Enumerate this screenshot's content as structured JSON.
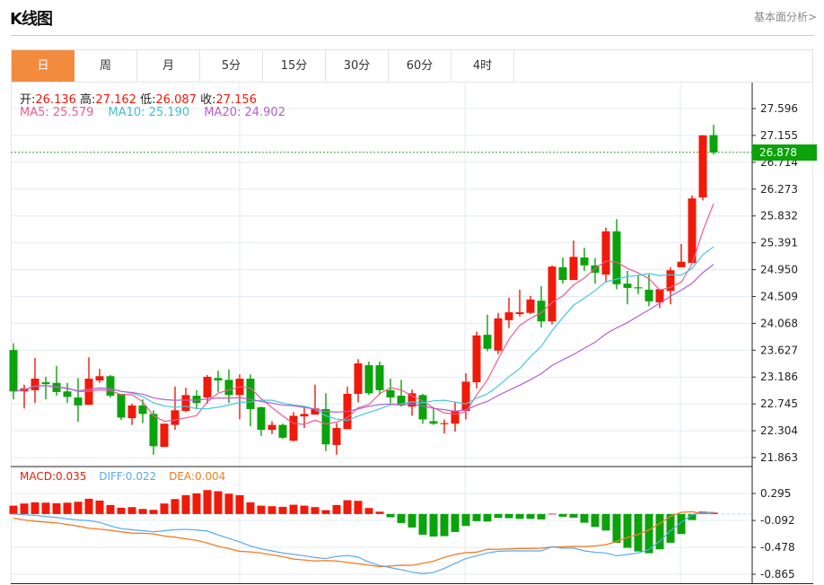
{
  "header": {
    "title": "K线图",
    "more_link": "基本面分析>"
  },
  "tabs": [
    {
      "label": "日",
      "active": true
    },
    {
      "label": "周"
    },
    {
      "label": "月"
    },
    {
      "label": "5分"
    },
    {
      "label": "15分"
    },
    {
      "label": "30分"
    },
    {
      "label": "60分"
    },
    {
      "label": "4时"
    }
  ],
  "ohlc_legend": {
    "open_label": "开:",
    "open": "26.136",
    "high_label": "高:",
    "high": "27.162",
    "low_label": "低:",
    "low": "26.087",
    "close_label": "收:",
    "close": "27.156"
  },
  "ma_legend": {
    "ma5": "MA5: 25.579",
    "ma10": "MA10: 25.190",
    "ma20": "MA20: 24.902"
  },
  "macd_legend": {
    "macd": "MACD:0.035",
    "diff": "DIFF:0.022",
    "dea": "DEA:0.004"
  },
  "current_price": "26.878",
  "colors": {
    "up": "#f01a0a",
    "down": "#0aa30a",
    "ma5": "#ef5b8f",
    "ma10": "#45c8dc",
    "ma20": "#b45fd0",
    "diff": "#55aaf0",
    "dea": "#f57b20",
    "accent": "#f38b3f"
  },
  "chart_data": [
    {
      "type": "candlestick",
      "ylim": [
        21.863,
        27.596
      ],
      "y_ticks": [
        "27.596",
        "27.155",
        "26.714",
        "26.273",
        "25.832",
        "25.391",
        "24.950",
        "24.509",
        "24.068",
        "23.627",
        "23.186",
        "22.745",
        "22.304",
        "21.863"
      ],
      "grid": true,
      "ohlc": [
        [
          23.63,
          23.74,
          22.82,
          22.95
        ],
        [
          22.95,
          23.06,
          22.67,
          23.0
        ],
        [
          22.97,
          23.5,
          22.76,
          23.16
        ],
        [
          23.1,
          23.19,
          22.82,
          23.07
        ],
        [
          23.09,
          23.37,
          22.88,
          22.94
        ],
        [
          22.95,
          23.09,
          22.76,
          22.86
        ],
        [
          22.85,
          23.17,
          22.45,
          22.72
        ],
        [
          22.73,
          23.51,
          22.73,
          23.16
        ],
        [
          23.13,
          23.32,
          23.09,
          23.2
        ],
        [
          23.2,
          23.22,
          22.85,
          22.88
        ],
        [
          22.91,
          22.91,
          22.48,
          22.52
        ],
        [
          22.51,
          22.75,
          22.4,
          22.72
        ],
        [
          22.72,
          22.82,
          22.43,
          22.58
        ],
        [
          22.58,
          22.64,
          21.91,
          22.05
        ],
        [
          22.04,
          22.42,
          22.04,
          22.42
        ],
        [
          22.4,
          23.03,
          22.32,
          22.64
        ],
        [
          22.63,
          23.01,
          22.61,
          22.89
        ],
        [
          22.88,
          22.97,
          22.67,
          22.76
        ],
        [
          22.85,
          23.22,
          22.75,
          23.19
        ],
        [
          23.17,
          23.29,
          22.94,
          23.13
        ],
        [
          23.14,
          23.31,
          22.76,
          22.89
        ],
        [
          22.89,
          23.23,
          22.49,
          23.16
        ],
        [
          23.16,
          23.23,
          22.38,
          22.66
        ],
        [
          22.69,
          22.7,
          22.22,
          22.32
        ],
        [
          22.32,
          22.46,
          22.25,
          22.4
        ],
        [
          22.4,
          22.42,
          22.17,
          22.19
        ],
        [
          22.14,
          22.61,
          22.13,
          22.55
        ],
        [
          22.54,
          22.7,
          22.35,
          22.58
        ],
        [
          22.57,
          23.06,
          22.57,
          22.67
        ],
        [
          22.66,
          22.92,
          21.97,
          22.08
        ],
        [
          22.07,
          22.43,
          21.91,
          22.35
        ],
        [
          22.33,
          23.03,
          22.33,
          22.91
        ],
        [
          22.91,
          23.48,
          22.77,
          23.41
        ],
        [
          23.38,
          23.44,
          22.89,
          22.92
        ],
        [
          23.38,
          23.44,
          22.89,
          22.97
        ],
        [
          22.97,
          23.16,
          22.76,
          22.85
        ],
        [
          22.88,
          23.14,
          22.7,
          22.72
        ],
        [
          22.7,
          22.98,
          22.55,
          22.92
        ],
        [
          22.89,
          22.91,
          22.42,
          22.49
        ],
        [
          22.46,
          22.67,
          22.4,
          22.42
        ],
        [
          22.42,
          22.49,
          22.26,
          22.43
        ],
        [
          22.42,
          22.77,
          22.29,
          22.63
        ],
        [
          22.63,
          23.25,
          22.49,
          23.11
        ],
        [
          23.1,
          23.93,
          23.0,
          23.87
        ],
        [
          23.88,
          24.21,
          23.61,
          23.65
        ],
        [
          23.62,
          24.24,
          23.56,
          24.15
        ],
        [
          24.12,
          24.49,
          23.99,
          24.25
        ],
        [
          24.22,
          24.62,
          24.18,
          24.25
        ],
        [
          24.24,
          24.52,
          24.22,
          24.46
        ],
        [
          24.44,
          24.68,
          24.0,
          24.1
        ],
        [
          24.1,
          25.02,
          24.05,
          25.0
        ],
        [
          24.99,
          25.15,
          24.72,
          24.78
        ],
        [
          24.78,
          25.43,
          24.78,
          25.16
        ],
        [
          25.15,
          25.31,
          24.93,
          25.02
        ],
        [
          25.02,
          25.14,
          24.72,
          24.9
        ],
        [
          24.87,
          25.64,
          24.74,
          25.58
        ],
        [
          25.58,
          25.78,
          24.63,
          24.71
        ],
        [
          24.72,
          24.93,
          24.38,
          24.65
        ],
        [
          24.66,
          24.87,
          24.55,
          24.65
        ],
        [
          24.62,
          24.87,
          24.35,
          24.43
        ],
        [
          24.41,
          24.63,
          24.32,
          24.63
        ],
        [
          24.6,
          24.99,
          24.38,
          24.94
        ],
        [
          24.99,
          25.37,
          24.99,
          25.08
        ],
        [
          25.06,
          26.17,
          25.06,
          26.12
        ],
        [
          26.136,
          27.162,
          26.087,
          27.156
        ],
        [
          27.16,
          27.33,
          26.84,
          26.878
        ]
      ],
      "moving_averages": [
        5,
        10,
        20
      ]
    },
    {
      "type": "bar",
      "ylim": [
        -0.865,
        0.295
      ],
      "y_ticks": [
        "0.295",
        "-0.092",
        "-0.478",
        "-0.865"
      ],
      "macd": [
        0.12,
        0.151,
        0.168,
        0.163,
        0.155,
        0.163,
        0.176,
        0.219,
        0.194,
        0.129,
        0.09,
        0.099,
        0.073,
        0.06,
        0.151,
        0.215,
        0.271,
        0.297,
        0.344,
        0.327,
        0.292,
        0.271,
        0.168,
        0.12,
        0.112,
        0.103,
        0.133,
        0.12,
        0.099,
        0.056,
        0.129,
        0.198,
        0.189,
        0.086,
        0.034,
        -0.047,
        -0.129,
        -0.194,
        -0.297,
        -0.323,
        -0.318,
        -0.258,
        -0.172,
        -0.103,
        -0.108,
        -0.056,
        -0.06,
        -0.069,
        -0.069,
        -0.077,
        0.005,
        -0.039,
        -0.052,
        -0.125,
        -0.185,
        -0.237,
        -0.413,
        -0.486,
        -0.538,
        -0.563,
        -0.507,
        -0.413,
        -0.288,
        -0.086,
        0.035,
        0.02
      ],
      "diff": [
        0.0,
        -0.01,
        -0.02,
        -0.035,
        -0.05,
        -0.07,
        -0.085,
        -0.095,
        -0.12,
        -0.17,
        -0.21,
        -0.225,
        -0.24,
        -0.255,
        -0.24,
        -0.225,
        -0.22,
        -0.23,
        -0.245,
        -0.3,
        -0.35,
        -0.4,
        -0.46,
        -0.5,
        -0.53,
        -0.56,
        -0.58,
        -0.6,
        -0.625,
        -0.64,
        -0.61,
        -0.595,
        -0.62,
        -0.69,
        -0.74,
        -0.77,
        -0.8,
        -0.835,
        -0.855,
        -0.84,
        -0.78,
        -0.71,
        -0.64,
        -0.6,
        -0.56,
        -0.535,
        -0.53,
        -0.53,
        -0.53,
        -0.53,
        -0.47,
        -0.49,
        -0.49,
        -0.53,
        -0.55,
        -0.56,
        -0.6,
        -0.58,
        -0.56,
        -0.51,
        -0.39,
        -0.24,
        -0.12,
        -0.01,
        0.022,
        0.025
      ]
    }
  ]
}
